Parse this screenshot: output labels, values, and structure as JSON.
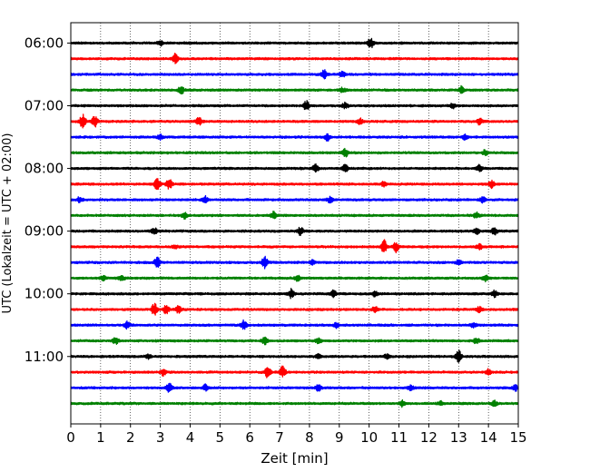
{
  "chart_data": {
    "type": "line",
    "title": "",
    "xlabel": "Zeit  [min]",
    "ylabel": "UTC (Lokalzeit = UTC + 02:00)",
    "xlim": [
      0,
      15
    ],
    "xticks": [
      0,
      1,
      2,
      3,
      4,
      5,
      6,
      7,
      8,
      9,
      10,
      11,
      12,
      13,
      14,
      15
    ],
    "xgrid": "dotted vertical lines at each minute",
    "ylim_minutes": [
      -1.3,
      24.3
    ],
    "y_inverted": true,
    "yticks": [
      {
        "label": "06:00",
        "trace_index": 0
      },
      {
        "label": "07:00",
        "trace_index": 4
      },
      {
        "label": "08:00",
        "trace_index": 8
      },
      {
        "label": "09:00",
        "trace_index": 12
      },
      {
        "label": "10:00",
        "trace_index": 16
      },
      {
        "label": "11:00",
        "trace_index": 20
      }
    ],
    "trace_interval_minutes": 15,
    "color_cycle": [
      "#000000",
      "#ff0000",
      "#0000ff",
      "#008000"
    ],
    "traces": [
      {
        "start": "06:00",
        "events": [
          [
            10.05,
            1.0
          ],
          [
            3.0,
            0.4
          ]
        ]
      },
      {
        "start": "06:15",
        "events": [
          [
            3.5,
            0.9
          ]
        ]
      },
      {
        "start": "06:30",
        "events": [
          [
            8.5,
            0.8
          ],
          [
            9.1,
            0.6
          ]
        ]
      },
      {
        "start": "06:45",
        "events": [
          [
            3.7,
            0.7
          ],
          [
            13.1,
            0.7
          ],
          [
            9.1,
            0.4
          ]
        ]
      },
      {
        "start": "07:00",
        "events": [
          [
            7.9,
            0.8
          ],
          [
            9.2,
            0.5
          ],
          [
            12.8,
            0.4
          ]
        ]
      },
      {
        "start": "07:15",
        "events": [
          [
            0.4,
            1.3
          ],
          [
            0.8,
            1.0
          ],
          [
            4.3,
            0.7
          ],
          [
            9.7,
            0.5
          ],
          [
            13.7,
            0.6
          ]
        ]
      },
      {
        "start": "07:30",
        "events": [
          [
            8.6,
            0.6
          ],
          [
            3.0,
            0.4
          ],
          [
            13.2,
            0.4
          ]
        ]
      },
      {
        "start": "07:45",
        "events": [
          [
            9.2,
            0.7
          ],
          [
            13.9,
            0.5
          ]
        ]
      },
      {
        "start": "08:00",
        "events": [
          [
            8.2,
            0.7
          ],
          [
            9.2,
            0.7
          ],
          [
            13.7,
            0.6
          ]
        ]
      },
      {
        "start": "08:15",
        "events": [
          [
            2.9,
            1.2
          ],
          [
            3.3,
            0.9
          ],
          [
            14.1,
            0.6
          ],
          [
            10.5,
            0.4
          ]
        ]
      },
      {
        "start": "08:30",
        "events": [
          [
            0.3,
            0.5
          ],
          [
            4.5,
            0.6
          ],
          [
            8.7,
            0.5
          ],
          [
            13.8,
            0.5
          ]
        ]
      },
      {
        "start": "08:45",
        "events": [
          [
            3.8,
            0.6
          ],
          [
            6.8,
            0.6
          ],
          [
            13.6,
            0.5
          ]
        ]
      },
      {
        "start": "09:00",
        "events": [
          [
            2.8,
            0.6
          ],
          [
            7.7,
            0.7
          ],
          [
            14.2,
            0.8
          ],
          [
            13.6,
            0.5
          ]
        ]
      },
      {
        "start": "09:15",
        "events": [
          [
            10.5,
            1.2
          ],
          [
            10.9,
            0.9
          ],
          [
            13.7,
            0.5
          ],
          [
            3.5,
            0.3
          ]
        ]
      },
      {
        "start": "09:30",
        "events": [
          [
            2.9,
            0.9
          ],
          [
            6.5,
            1.1
          ],
          [
            8.1,
            0.5
          ],
          [
            13.0,
            0.4
          ]
        ]
      },
      {
        "start": "09:45",
        "events": [
          [
            1.1,
            0.5
          ],
          [
            1.7,
            0.5
          ],
          [
            7.6,
            0.5
          ],
          [
            13.9,
            0.5
          ]
        ]
      },
      {
        "start": "10:00",
        "events": [
          [
            7.4,
            0.8
          ],
          [
            8.8,
            0.6
          ],
          [
            14.2,
            0.6
          ],
          [
            10.2,
            0.4
          ]
        ]
      },
      {
        "start": "10:15",
        "events": [
          [
            2.8,
            1.1
          ],
          [
            3.2,
            0.8
          ],
          [
            3.6,
            0.6
          ],
          [
            10.2,
            0.5
          ],
          [
            13.7,
            0.5
          ]
        ]
      },
      {
        "start": "10:30",
        "events": [
          [
            1.9,
            0.6
          ],
          [
            5.8,
            0.8
          ],
          [
            8.9,
            0.4
          ],
          [
            13.5,
            0.4
          ]
        ]
      },
      {
        "start": "10:45",
        "events": [
          [
            1.5,
            0.6
          ],
          [
            6.5,
            0.6
          ],
          [
            8.3,
            0.5
          ],
          [
            13.6,
            0.5
          ]
        ]
      },
      {
        "start": "11:00",
        "events": [
          [
            13.0,
            1.0
          ],
          [
            2.6,
            0.4
          ],
          [
            8.3,
            0.4
          ],
          [
            10.6,
            0.4
          ]
        ]
      },
      {
        "start": "11:15",
        "events": [
          [
            6.6,
            1.1
          ],
          [
            7.1,
            1.0
          ],
          [
            3.1,
            0.6
          ],
          [
            14.0,
            0.5
          ]
        ]
      },
      {
        "start": "11:30",
        "events": [
          [
            3.3,
            0.8
          ],
          [
            4.5,
            0.6
          ],
          [
            8.3,
            0.5
          ],
          [
            14.9,
            0.5
          ],
          [
            11.4,
            0.4
          ]
        ]
      },
      {
        "start": "11:45",
        "events": [
          [
            11.1,
            0.5
          ],
          [
            12.4,
            0.4
          ],
          [
            14.2,
            0.5
          ]
        ]
      }
    ]
  }
}
